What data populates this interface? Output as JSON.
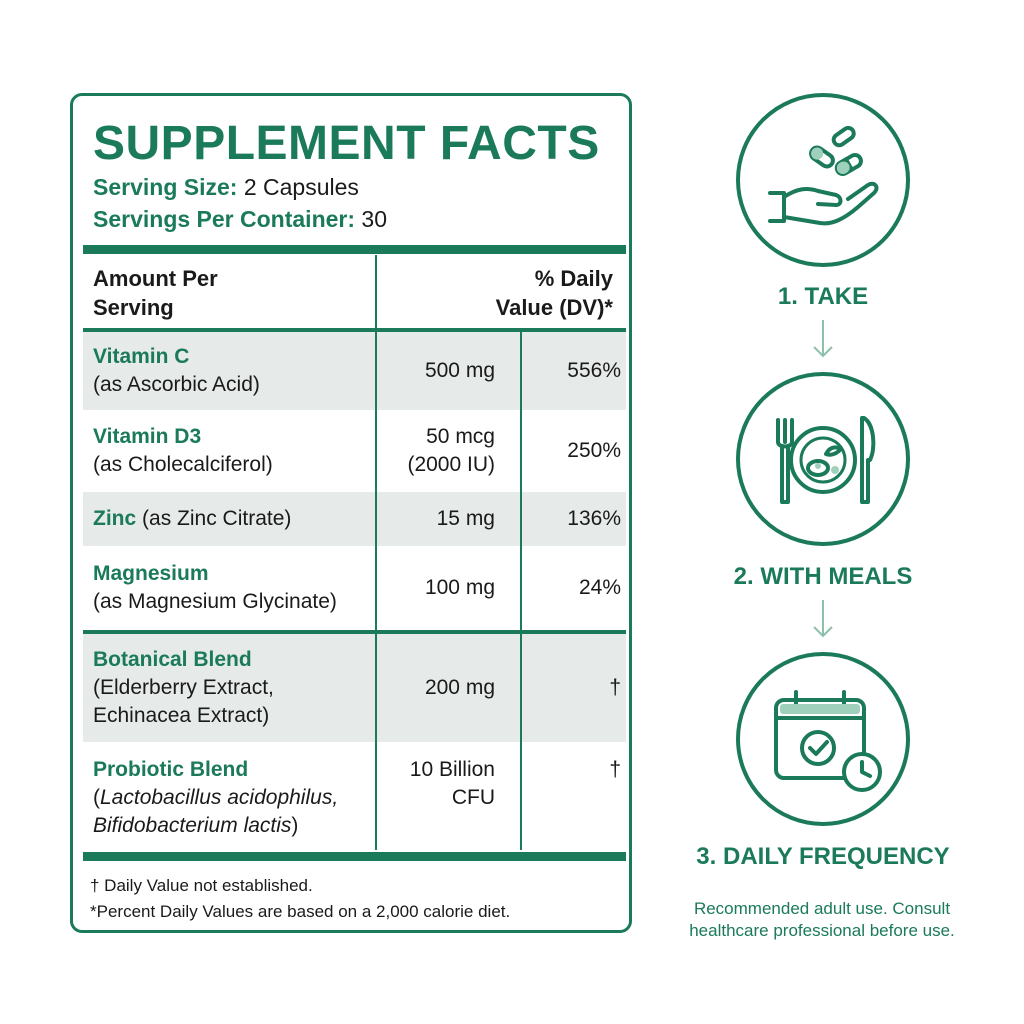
{
  "facts": {
    "title": "SUPPLEMENT FACTS",
    "serving_size_label": "Serving Size:",
    "serving_size_value": " 2 Capsules",
    "servings_per_container_label": "Servings Per Container:",
    "servings_per_container_value": " 30",
    "header_amount_line1": "Amount Per",
    "header_amount_line2": "Serving",
    "header_dv_line1": "% Daily",
    "header_dv_line2": "Value (DV)*",
    "rows": [
      {
        "name": "Vitamin C",
        "detail": "(as Ascorbic Acid)",
        "amount_line1": "500 mg",
        "amount_line2": "",
        "dv": "556%"
      },
      {
        "name": "Vitamin D3",
        "detail": "(as Cholecalciferol)",
        "amount_line1": "50 mcg",
        "amount_line2": "(2000 IU)",
        "dv": "250%"
      },
      {
        "name": "Zinc",
        "detail": "(as Zinc Citrate)",
        "amount_line1": "15 mg",
        "amount_line2": "",
        "dv": "136%"
      },
      {
        "name": "Magnesium",
        "detail": "(as Magnesium Glycinate)",
        "amount_line1": "100 mg",
        "amount_line2": "",
        "dv": "24%"
      },
      {
        "name": "Botanical Blend",
        "detail_line1": "(Elderberry Extract,",
        "detail_line2": "Echinacea Extract)",
        "amount_line1": "200 mg",
        "amount_line2": "",
        "dv": "†"
      },
      {
        "name": "Probiotic Blend",
        "detail_open": "(",
        "detail_italic1": "Lactobacillus acidophilus,",
        "detail_italic2": "Bifidobacterium lactis",
        "detail_close": ")",
        "amount_line1": "10 Billion",
        "amount_line2": "CFU",
        "dv": "†"
      }
    ],
    "footnote1": "† Daily Value not established.",
    "footnote2": "*Percent Daily Values are based on a 2,000 calorie diet."
  },
  "steps": [
    {
      "label": "1. TAKE",
      "icon": "hand-capsules-icon"
    },
    {
      "label": "2. WITH MEALS",
      "icon": "plate-fork-knife-icon"
    },
    {
      "label": "3. DAILY FREQUENCY",
      "icon": "calendar-check-clock-icon"
    }
  ],
  "note_line1": "Recommended adult use. Consult",
  "note_line2": "healthcare professional before use.",
  "colors": {
    "accent": "#1a7a5a",
    "row_shade": "#e6eae8",
    "text": "#1a1a1a"
  }
}
